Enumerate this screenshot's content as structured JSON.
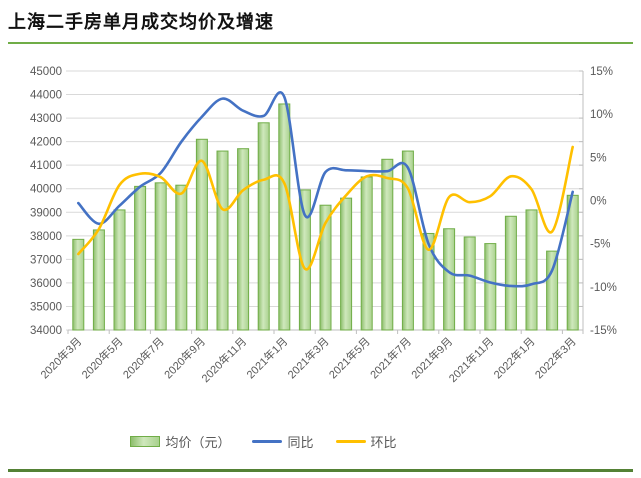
{
  "title": "上海二手房单月成交均价及增速",
  "colors": {
    "bar_fill": "#A9D18E",
    "bar_fill_light": "#CFE8BC",
    "bar_fill_dark": "#8DBE6C",
    "bar_stroke": "#70AD47",
    "yoy_line": "#4472C4",
    "mom_line": "#FFC000",
    "grid": "#D9D9D9",
    "axis_line": "#BFBFBF",
    "axis_text": "#595959",
    "rule_top": "#70AD47",
    "rule_bottom": "#538135"
  },
  "chart_data": {
    "type": "bar",
    "subtype": "combo bar + smooth lines, dual axis",
    "title": "上海二手房单月成交均价及增速",
    "xlabel": "",
    "ylabel_left": "",
    "ylabel_right": "",
    "grid": "on",
    "legend_position": "bottom",
    "categories": [
      "2020年3月",
      "2020年4月",
      "2020年5月",
      "2020年6月",
      "2020年7月",
      "2020年8月",
      "2020年9月",
      "2020年10月",
      "2020年11月",
      "2020年12月",
      "2021年1月",
      "2021年2月",
      "2021年3月",
      "2021年4月",
      "2021年5月",
      "2021年6月",
      "2021年7月",
      "2021年8月",
      "2021年9月",
      "2021年10月",
      "2021年11月",
      "2021年12月",
      "2022年1月",
      "2022年2月",
      "2022年3月"
    ],
    "x_tick_labels": [
      "2020年3月",
      "2020年5月",
      "2020年7月",
      "2020年9月",
      "2020年11月",
      "2021年1月",
      "2021年3月",
      "2021年5月",
      "2021年7月",
      "2021年9月",
      "2021年11月",
      "2022年1月",
      "2022年3月"
    ],
    "series": [
      {
        "name": "均价（元）",
        "type": "bar",
        "axis": "left",
        "values": [
          37850,
          38250,
          39100,
          40100,
          40250,
          40150,
          42100,
          41600,
          41700,
          42800,
          43600,
          39950,
          39300,
          39600,
          40500,
          41250,
          41600,
          38100,
          38300,
          37950,
          37670,
          38830,
          39100,
          37350,
          39720
        ]
      },
      {
        "name": "同比",
        "type": "line",
        "axis": "right",
        "values": [
          -0.3,
          -2.7,
          -0.6,
          1.6,
          3.2,
          6.8,
          9.7,
          11.8,
          10.4,
          9.8,
          12.0,
          -1.7,
          3.3,
          3.5,
          3.4,
          3.4,
          3.8,
          -5.0,
          -8.3,
          -8.7,
          -9.5,
          -9.9,
          -9.7,
          -8.1,
          1.0
        ]
      },
      {
        "name": "环比",
        "type": "line",
        "axis": "right",
        "values": [
          -6.2,
          -3.3,
          1.8,
          3.1,
          2.7,
          0.8,
          4.6,
          -1.0,
          1.2,
          2.4,
          2.0,
          -7.9,
          -2.6,
          0.6,
          2.8,
          2.6,
          1.4,
          -5.7,
          0.4,
          -0.2,
          0.5,
          2.8,
          1.3,
          -3.6,
          6.2
        ]
      }
    ],
    "left_axis": {
      "min": 34000,
      "max": 45000,
      "step": 1000,
      "tick_labels": [
        "45000",
        "44000",
        "43000",
        "42000",
        "41000",
        "40000",
        "39000",
        "38000",
        "37000",
        "36000",
        "35000",
        "34000"
      ]
    },
    "right_axis": {
      "min": -15,
      "max": 15,
      "step": 5,
      "tick_labels": [
        "15%",
        "10%",
        "5%",
        "0%",
        "-5%",
        "-10%",
        "-15%"
      ]
    }
  }
}
